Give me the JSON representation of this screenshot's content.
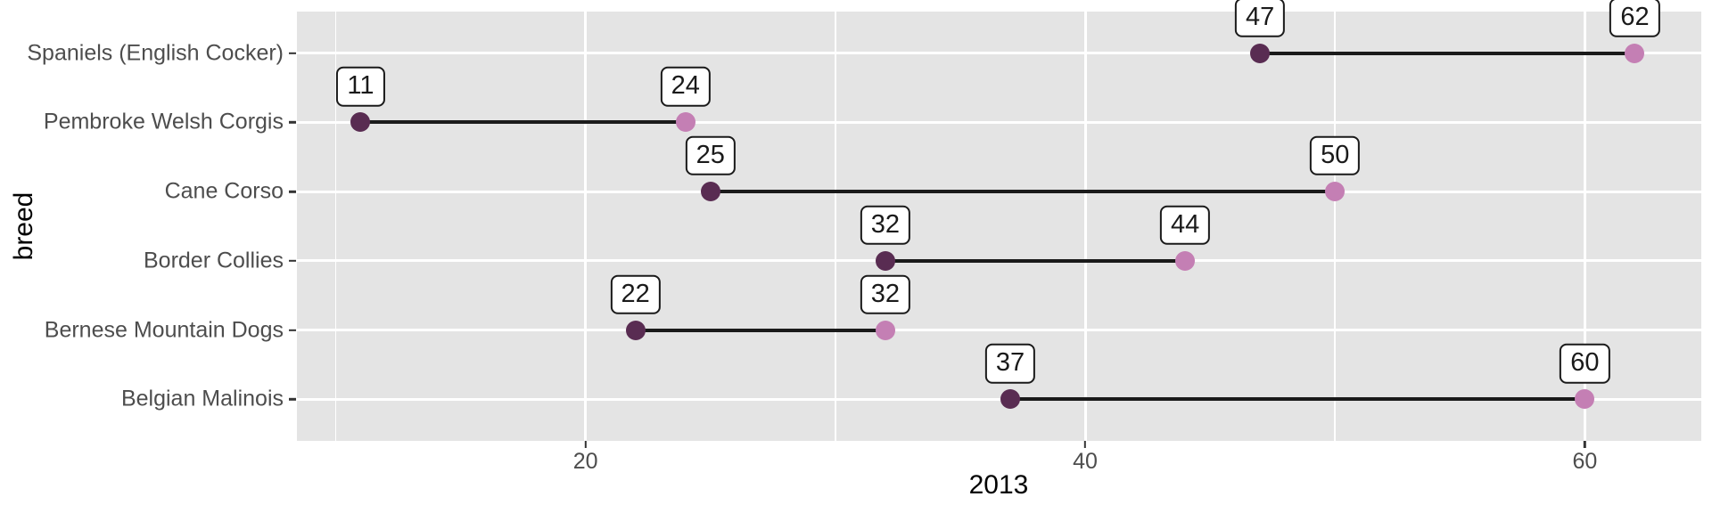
{
  "chart_data": {
    "type": "dumbbell",
    "title": "",
    "xlabel": "2013",
    "ylabel": "breed",
    "categories": [
      "Spaniels (English Cocker)",
      "Pembroke Welsh Corgis",
      "Cane Corso",
      "Border Collies",
      "Bernese Mountain Dogs",
      "Belgian Malinois"
    ],
    "series": [
      {
        "name": "start",
        "values": [
          47,
          11,
          25,
          32,
          22,
          37
        ],
        "color": "#592C52"
      },
      {
        "name": "end",
        "values": [
          62,
          24,
          50,
          44,
          32,
          60
        ],
        "color": "#C47FB4"
      }
    ],
    "value_labels": {
      "start": [
        "47",
        "11",
        "25",
        "32",
        "22",
        "37"
      ],
      "end": [
        "62",
        "24",
        "50",
        "44",
        "32",
        "60"
      ]
    },
    "xlim": [
      8.45,
      64.66
    ],
    "x_ticks": [
      20,
      40,
      60
    ],
    "x_tick_labels": [
      "20",
      "40",
      "60"
    ],
    "x_minor_ticks": [
      10,
      30,
      50
    ],
    "grid": true,
    "legend": false
  },
  "colors": {
    "panel_bg": "#E4E4E4",
    "grid": "#FFFFFF",
    "segment": "#1A1A1A",
    "start_point": "#592C52",
    "end_point": "#C47FB4",
    "axis_text": "#4D4D4D",
    "axis_title": "#000000",
    "label_box_bg": "#FFFFFF",
    "label_box_border": "#1A1A1A"
  }
}
